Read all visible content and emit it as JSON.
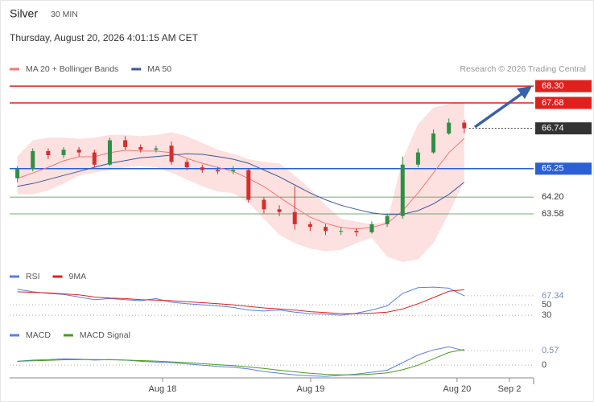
{
  "header": {
    "title": "Silver",
    "timeframe": "30 MIN",
    "datetime": "Thursday, August 20, 2026 4:01:15 AM CET",
    "credit": "Research © 2026 Trading Central"
  },
  "chart_data": [
    {
      "type": "candlestick",
      "open": [
        64.9,
        65.25,
        65.9,
        65.75,
        65.95,
        65.85,
        65.4,
        66.3,
        66.05,
        65.95,
        66.1,
        65.5,
        65.3,
        65.2,
        65.15,
        65.2,
        64.1,
        63.75,
        63.65,
        63.2,
        63.1,
        62.95,
        62.95,
        62.9,
        63.2,
        63.5,
        65.4,
        65.85,
        66.55,
        66.95
      ],
      "high": [
        65.35,
        66.0,
        66.0,
        66.05,
        66.05,
        65.95,
        66.4,
        66.45,
        66.15,
        66.1,
        66.25,
        65.6,
        65.4,
        65.3,
        65.35,
        65.25,
        64.2,
        63.9,
        64.6,
        63.3,
        63.2,
        63.1,
        63.05,
        63.3,
        63.6,
        65.7,
        66.0,
        66.7,
        67.1,
        67.05
      ],
      "low": [
        64.75,
        65.15,
        65.6,
        65.65,
        65.7,
        65.3,
        65.35,
        65.95,
        65.85,
        65.85,
        65.4,
        65.2,
        65.1,
        65.05,
        65.05,
        64.0,
        63.6,
        63.5,
        63.0,
        62.95,
        62.8,
        62.8,
        62.75,
        62.85,
        63.1,
        63.4,
        65.3,
        65.8,
        66.5,
        66.55
      ],
      "close": [
        65.25,
        65.9,
        65.75,
        65.95,
        65.85,
        65.4,
        66.3,
        66.05,
        65.95,
        66.0,
        65.5,
        65.3,
        65.2,
        65.15,
        65.2,
        64.1,
        63.75,
        63.65,
        63.2,
        63.1,
        62.95,
        62.95,
        62.9,
        63.2,
        63.5,
        65.4,
        65.85,
        66.55,
        66.95,
        66.74
      ],
      "up_color": "#2f8f46",
      "down_color": "#d22f2f",
      "series": [
        {
          "name": "MA 20 + Bollinger Bands",
          "color": "#f07878",
          "values": [
            64.89,
            65.09,
            65.3,
            65.54,
            65.69,
            65.69,
            65.84,
            65.93,
            65.9,
            65.9,
            65.84,
            65.63,
            65.45,
            65.3,
            65.15,
            64.89,
            64.59,
            64.2,
            63.82,
            63.46,
            63.23,
            63.08,
            63.02,
            63.08,
            63.23,
            63.7,
            64.35,
            65.1,
            65.84,
            66.37
          ]
        },
        {
          "name": "MA 50",
          "color": "#3a5a96",
          "values": [
            64.6,
            64.7,
            64.85,
            65.0,
            65.15,
            65.3,
            65.45,
            65.55,
            65.65,
            65.7,
            65.75,
            65.8,
            65.78,
            65.7,
            65.6,
            65.45,
            65.2,
            64.95,
            64.65,
            64.35,
            64.1,
            63.9,
            63.75,
            63.62,
            63.55,
            63.57,
            63.7,
            63.95,
            64.3,
            64.75
          ]
        }
      ],
      "bollinger_upper": [
        65.7,
        66.3,
        66.4,
        66.4,
        66.35,
        66.4,
        66.5,
        66.5,
        66.45,
        66.5,
        66.6,
        66.45,
        66.2,
        65.95,
        65.8,
        65.6,
        65.5,
        65.45,
        65.0,
        64.5,
        63.9,
        63.4,
        63.3,
        63.2,
        63.3,
        65.6,
        66.9,
        67.5,
        67.65,
        67.7
      ],
      "bollinger_lower": [
        64.3,
        64.3,
        64.45,
        64.7,
        65.0,
        65.1,
        65.2,
        65.3,
        65.35,
        65.3,
        65.1,
        64.85,
        64.6,
        64.4,
        64.35,
        64.0,
        63.4,
        62.8,
        62.5,
        62.3,
        62.2,
        62.25,
        62.5,
        62.7,
        62.0,
        61.8,
        61.9,
        62.5,
        63.6,
        64.8
      ],
      "band_color": "#fde0e0",
      "levels": [
        {
          "value": 68.3,
          "label": "68.30",
          "color": "#e0201c",
          "line": "solid",
          "label_style": "box"
        },
        {
          "value": 67.68,
          "color": "#e0201c",
          "line": "solid",
          "label_style": "box"
        },
        {
          "value": 66.74,
          "color": "#333333",
          "line": "dotted",
          "label_style": "box"
        },
        {
          "value": 65.25,
          "color": "#2a5fd6",
          "line": "solid",
          "label_style": "box"
        },
        {
          "value": 64.2,
          "label": "64.20",
          "color": "#3b9a3b",
          "line": "solid",
          "label_style": "text"
        },
        {
          "value": 63.58,
          "color": "#3b9a3b",
          "line": "solid",
          "label_style": "text"
        }
      ],
      "ylim": [
        61.68,
        68.66
      ]
    },
    {
      "type": "line",
      "series": [
        {
          "name": "RSI",
          "color": "#5b7fe0",
          "values": [
            80,
            75,
            72,
            70,
            65,
            60,
            62,
            60,
            58,
            62,
            55,
            52,
            50,
            48,
            45,
            40,
            38,
            40,
            36,
            33,
            32,
            30,
            34,
            40,
            48,
            72,
            83,
            84,
            82,
            67.34
          ]
        },
        {
          "name": "9MA",
          "color": "#e02020",
          "values": [
            75,
            74,
            73,
            71,
            69,
            65,
            63,
            62,
            60,
            59,
            58,
            56,
            54,
            52,
            50,
            47,
            44,
            42,
            40,
            37,
            35,
            33,
            33,
            34,
            36,
            42,
            52,
            64,
            76,
            79
          ]
        }
      ],
      "ylim": [
        17,
        95
      ],
      "yticks": [
        67.34,
        50,
        30
      ]
    },
    {
      "type": "line",
      "series": [
        {
          "name": "MACD",
          "color": "#5b7fe0",
          "values": [
            0.15,
            0.2,
            0.22,
            0.25,
            0.24,
            0.2,
            0.22,
            0.2,
            0.15,
            0.12,
            0.1,
            0.05,
            0.0,
            -0.05,
            -0.08,
            -0.15,
            -0.25,
            -0.32,
            -0.38,
            -0.42,
            -0.44,
            -0.4,
            -0.35,
            -0.28,
            -0.2,
            0.1,
            0.4,
            0.6,
            0.72,
            0.57
          ]
        },
        {
          "name": "MACD Signal",
          "color": "#4a9a1c",
          "values": [
            0.15,
            0.17,
            0.19,
            0.21,
            0.22,
            0.22,
            0.21,
            0.2,
            0.18,
            0.16,
            0.13,
            0.1,
            0.06,
            0.02,
            -0.02,
            -0.07,
            -0.13,
            -0.2,
            -0.26,
            -0.32,
            -0.36,
            -0.38,
            -0.38,
            -0.35,
            -0.3,
            -0.18,
            0.0,
            0.25,
            0.5,
            0.62
          ]
        }
      ],
      "ylim": [
        -0.5,
        1.46
      ],
      "yticks": [
        0.57,
        0
      ],
      "xlim": [
        -0.5,
        33.5
      ],
      "xticks": [
        {
          "value": 9.42,
          "label": "Aug 18"
        },
        {
          "value": 19.03,
          "label": "Aug 19"
        },
        {
          "value": 28.53,
          "label": "Aug 20"
        },
        {
          "value": 31.93,
          "label": "Sep 2"
        }
      ]
    }
  ]
}
